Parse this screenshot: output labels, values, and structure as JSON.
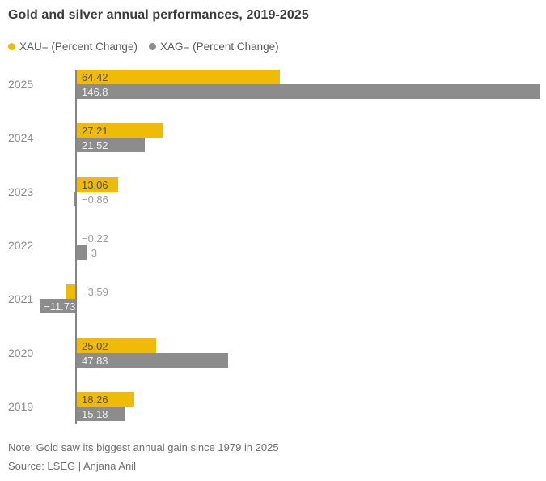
{
  "header": {
    "title": "Gold and silver annual performances, 2019-2025"
  },
  "legend": {
    "items": [
      {
        "label": "XAU= (Percent Change)",
        "color": "#F0BA08"
      },
      {
        "label": "XAG= (Percent Change)",
        "color": "#8C8C8C"
      }
    ]
  },
  "footer": {
    "note": "Note: Gold saw its biggest annual gain since 1979 in 2025",
    "source": "Source: LSEG | Anjana Anil"
  },
  "colors": {
    "gold": "#F0BA08",
    "silver": "#8C8C8C",
    "axis": "#858585",
    "label_on_gold": "#4d4d4d",
    "label_on_silver": "#f2f2f2",
    "label_outside": "#9c9c9c",
    "category": "#8a8a8a"
  },
  "chart_data": {
    "type": "bar",
    "orientation": "horizontal",
    "title": "Gold and silver annual performances, 2019-2025",
    "categories": [
      "2025",
      "2024",
      "2023",
      "2022",
      "2021",
      "2020",
      "2019"
    ],
    "series": [
      {
        "name": "XAU= (Percent Change)",
        "color": "#F0BA08",
        "values": [
          64.42,
          27.21,
          13.06,
          -0.22,
          -3.59,
          25.02,
          18.26
        ],
        "labels": [
          "64.42",
          "27.21",
          "13.06",
          "−0.22",
          "−3.59",
          "25.02",
          "18.26"
        ]
      },
      {
        "name": "XAG= (Percent Change)",
        "color": "#8C8C8C",
        "values": [
          146.8,
          21.52,
          -0.86,
          3,
          -11.73,
          47.83,
          15.18
        ],
        "labels": [
          "146.8",
          "21.52",
          "−0.86",
          "3",
          "−11.73",
          "47.83",
          "15.18"
        ]
      }
    ],
    "value_axis_max": 146.8,
    "xlim": [
      -15,
      150
    ],
    "legend_position": "top",
    "grid": false
  }
}
